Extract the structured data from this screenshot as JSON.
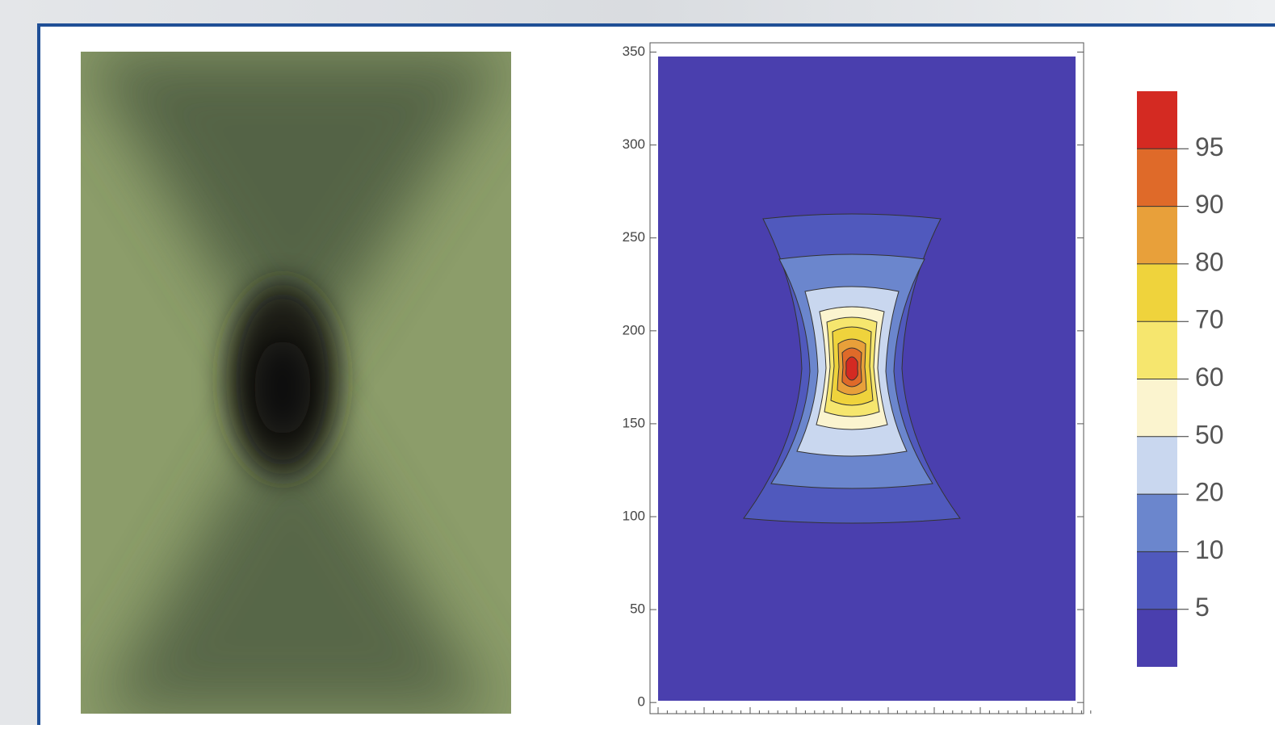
{
  "chart_data": {
    "type": "contour",
    "ylim": [
      -6,
      355
    ],
    "yticks": [
      0,
      50,
      100,
      150,
      200,
      250,
      300,
      350
    ],
    "levels": [
      5,
      10,
      20,
      50,
      60,
      70,
      80,
      90,
      95
    ],
    "colors": [
      "#4a3fae",
      "#5059bd",
      "#6b86cd",
      "#c9d7ef",
      "#fbf4cf",
      "#f6e66e",
      "#efd33c",
      "#e8a03a",
      "#df6a29",
      "#d42a22"
    ]
  }
}
